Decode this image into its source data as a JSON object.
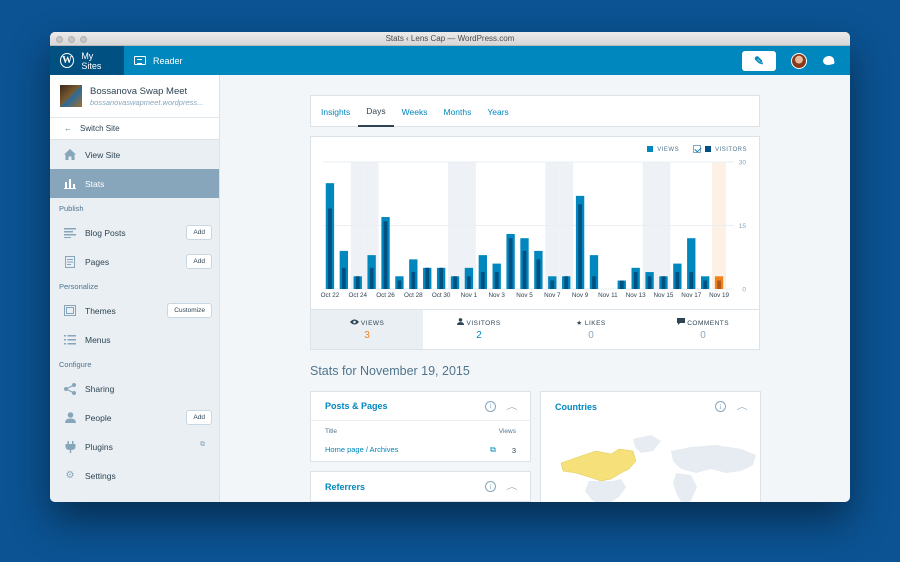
{
  "window": {
    "title": "Stats ‹ Lens Cap — WordPress.com"
  },
  "masterbar": {
    "my_sites": "My Sites",
    "reader": "Reader"
  },
  "site": {
    "name": "Bossanova Swap Meet",
    "url": "bossanovaswapmeet.wordpress..."
  },
  "sidebar": {
    "switch_site": "Switch Site",
    "view_site": "View Site",
    "stats": "Stats",
    "sections": {
      "publish": "Publish",
      "personalize": "Personalize",
      "configure": "Configure"
    },
    "items": {
      "blog_posts": "Blog Posts",
      "pages": "Pages",
      "themes": "Themes",
      "menus": "Menus",
      "sharing": "Sharing",
      "people": "People",
      "plugins": "Plugins",
      "settings": "Settings"
    },
    "buttons": {
      "add": "Add",
      "customize": "Customize"
    }
  },
  "tabs": [
    "Insights",
    "Days",
    "Weeks",
    "Months",
    "Years"
  ],
  "active_tab": "Days",
  "legend": {
    "views": "VIEWS",
    "visitors": "VISITORS"
  },
  "chart_data": {
    "type": "bar",
    "title": "",
    "xlabel": "",
    "ylabel": "",
    "ylim": [
      0,
      30
    ],
    "y_ticks": [
      "30",
      "15",
      "0"
    ],
    "categories": [
      "Oct 22",
      "Oct 23",
      "Oct 24",
      "Oct 25",
      "Oct 26",
      "Oct 27",
      "Oct 28",
      "Oct 29",
      "Oct 30",
      "Oct 31",
      "Nov 1",
      "Nov 2",
      "Nov 3",
      "Nov 4",
      "Nov 5",
      "Nov 6",
      "Nov 7",
      "Nov 8",
      "Nov 9",
      "Nov 10",
      "Nov 11",
      "Nov 12",
      "Nov 13",
      "Nov 14",
      "Nov 15",
      "Nov 16",
      "Nov 17",
      "Nov 18",
      "Nov 19"
    ],
    "tick_labels": [
      "Oct 22",
      "Oct 24",
      "Oct 26",
      "Oct 28",
      "Oct 30",
      "Nov 1",
      "Nov 3",
      "Nov 5",
      "Nov 7",
      "Nov 9",
      "Nov 11",
      "Nov 13",
      "Nov 15",
      "Nov 17",
      "Nov 19"
    ],
    "series": [
      {
        "name": "VIEWS",
        "color": "#0087be",
        "values": [
          25,
          9,
          3,
          8,
          17,
          3,
          7,
          5,
          5,
          3,
          5,
          8,
          6,
          13,
          12,
          9,
          3,
          3,
          22,
          8,
          0,
          2,
          5,
          4,
          3,
          6,
          12,
          3,
          3
        ]
      },
      {
        "name": "VISITORS",
        "color": "#005082",
        "values": [
          19,
          5,
          3,
          5,
          16,
          2,
          4,
          5,
          5,
          3,
          3,
          4,
          4,
          12,
          9,
          7,
          2,
          3,
          20,
          3,
          0,
          2,
          4,
          3,
          3,
          4,
          4,
          2,
          2
        ]
      }
    ],
    "weekend_categories": [
      "Oct 24",
      "Oct 25",
      "Oct 31",
      "Nov 1",
      "Nov 7",
      "Nov 8",
      "Nov 14",
      "Nov 15"
    ],
    "selected_category": "Nov 19",
    "grid": true
  },
  "summary": [
    {
      "label": "VIEWS",
      "value": "3",
      "icon": "eye-icon"
    },
    {
      "label": "VISITORS",
      "value": "2",
      "icon": "person-icon"
    },
    {
      "label": "LIKES",
      "value": "0",
      "icon": "star-icon"
    },
    {
      "label": "COMMENTS",
      "value": "0",
      "icon": "comment-icon"
    }
  ],
  "stats_title": "Stats for November 19, 2015",
  "posts_pages": {
    "title": "Posts & Pages",
    "col_title": "Title",
    "col_views": "Views",
    "rows": [
      {
        "title": "Home page / Archives",
        "views": "3"
      }
    ]
  },
  "referrers": {
    "title": "Referrers"
  },
  "countries": {
    "title": "Countries"
  },
  "colors": {
    "accent": "#0087be",
    "dark_blue": "#005082",
    "highlight": "#f0821e",
    "map_highlight": "#f5e07a"
  }
}
